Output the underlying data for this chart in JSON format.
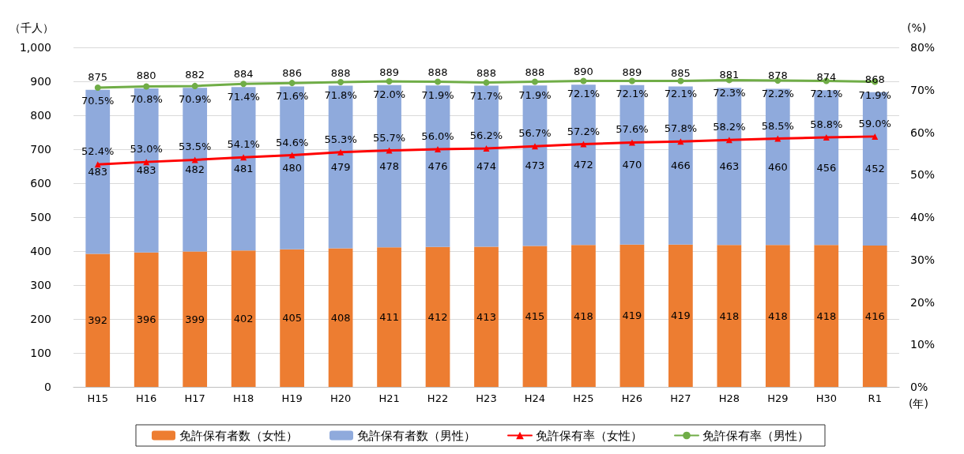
{
  "chart_data": {
    "type": "bar",
    "stacked": true,
    "ylabel": "（千人）",
    "y2label": "(%)",
    "xlabel": "(年)",
    "categories": [
      "H15",
      "H16",
      "H17",
      "H18",
      "H19",
      "H20",
      "H21",
      "H22",
      "H23",
      "H24",
      "H25",
      "H26",
      "H27",
      "H28",
      "H29",
      "H30",
      "R1"
    ],
    "series": [
      {
        "name": "免許保有者数（女性）",
        "color": "#ed7d31",
        "values": [
          392,
          396,
          399,
          402,
          405,
          408,
          411,
          412,
          413,
          415,
          418,
          419,
          419,
          418,
          418,
          418,
          416
        ],
        "value_labels": [
          "392",
          "396",
          "399",
          "402",
          "405",
          "408",
          "411",
          "412",
          "413",
          "415",
          "418",
          "419",
          "419",
          "418",
          "418",
          "418",
          "416"
        ]
      },
      {
        "name": "免許保有者数（男性）",
        "color": "#8faadc",
        "values": [
          483,
          483,
          482,
          481,
          480,
          479,
          478,
          476,
          474,
          473,
          472,
          470,
          466,
          463,
          460,
          456,
          452
        ],
        "value_labels": [
          "483",
          "483",
          "482",
          "481",
          "480",
          "479",
          "478",
          "476",
          "474",
          "473",
          "472",
          "470",
          "466",
          "463",
          "460",
          "456",
          "452"
        ]
      },
      {
        "name": "免許保有率（女性）",
        "type": "line",
        "axis": "y2",
        "marker": "triangle",
        "color": "#ff0000",
        "values": [
          52.4,
          53.0,
          53.5,
          54.1,
          54.6,
          55.3,
          55.7,
          56.0,
          56.2,
          56.7,
          57.2,
          57.6,
          57.8,
          58.2,
          58.5,
          58.8,
          59.0
        ],
        "value_labels": [
          "52.4%",
          "53.0%",
          "53.5%",
          "54.1%",
          "54.6%",
          "55.3%",
          "55.7%",
          "56.0%",
          "56.2%",
          "56.7%",
          "57.2%",
          "57.6%",
          "57.8%",
          "58.2%",
          "58.5%",
          "58.8%",
          "59.0%"
        ]
      },
      {
        "name": "免許保有率（男性）",
        "type": "line",
        "axis": "y2",
        "marker": "circle",
        "color": "#70ad47",
        "values": [
          70.5,
          70.8,
          70.9,
          71.4,
          71.6,
          71.8,
          72.0,
          71.9,
          71.7,
          71.9,
          72.1,
          72.1,
          72.1,
          72.3,
          72.2,
          72.1,
          71.9
        ],
        "value_labels": [
          "70.5%",
          "70.8%",
          "70.9%",
          "71.4%",
          "71.6%",
          "71.8%",
          "72.0%",
          "71.9%",
          "71.7%",
          "71.9%",
          "72.1%",
          "72.1%",
          "72.1%",
          "72.3%",
          "72.2%",
          "72.1%",
          "71.9%"
        ]
      }
    ],
    "totals": [
      "875",
      "880",
      "882",
      "884",
      "886",
      "888",
      "889",
      "888",
      "888",
      "888",
      "890",
      "889",
      "885",
      "881",
      "878",
      "874",
      "868"
    ],
    "ylim": [
      0,
      1000
    ],
    "yticks": [
      0,
      100,
      200,
      300,
      400,
      500,
      600,
      700,
      800,
      900,
      {
        "value": 1000,
        "label": "1,000"
      }
    ],
    "y2lim": [
      0,
      80
    ],
    "y2ticks": [
      {
        "value": 0,
        "label": "0%"
      },
      {
        "value": 10,
        "label": "10%"
      },
      {
        "value": 20,
        "label": "20%"
      },
      {
        "value": 30,
        "label": "30%"
      },
      {
        "value": 40,
        "label": "40%"
      },
      {
        "value": 50,
        "label": "50%"
      },
      {
        "value": 60,
        "label": "60%"
      },
      {
        "value": 70,
        "label": "70%"
      },
      {
        "value": 80,
        "label": "80%"
      }
    ],
    "grid": "y",
    "legend": "bottom"
  }
}
